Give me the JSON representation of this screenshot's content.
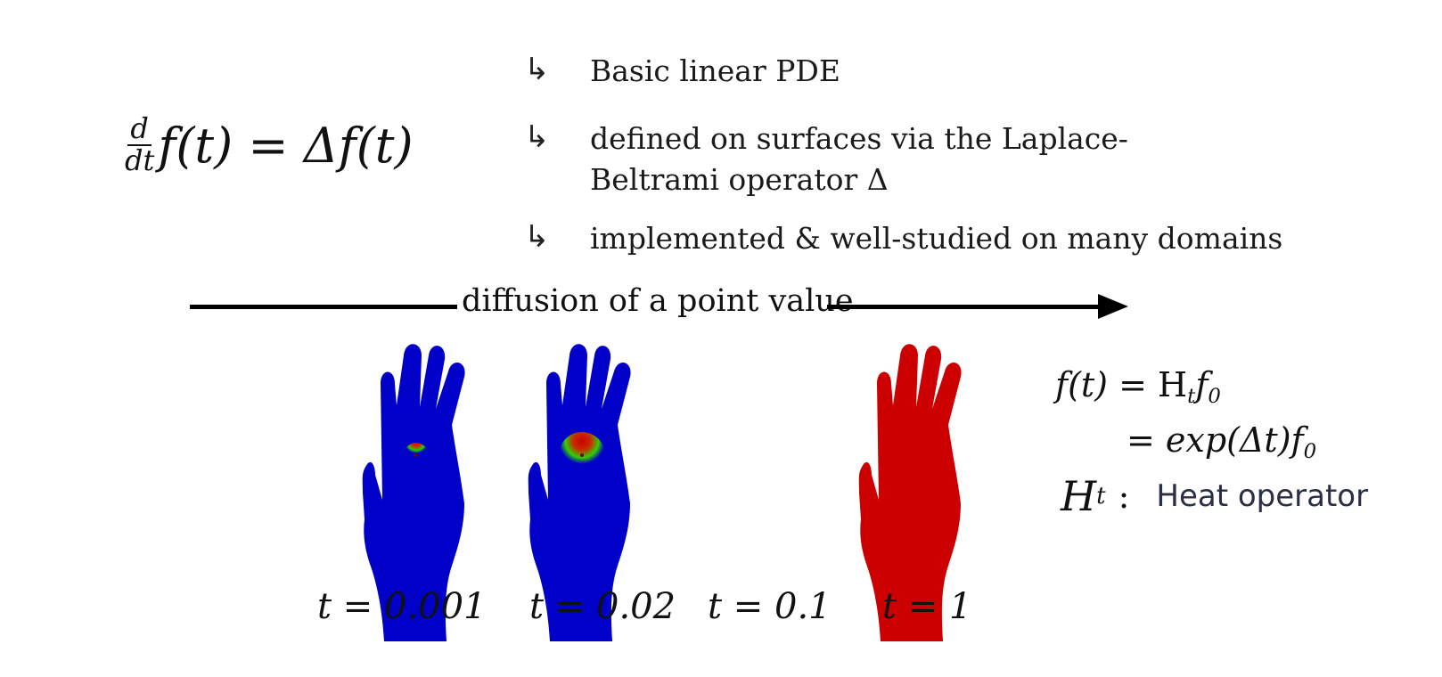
{
  "equation": {
    "frac_num": "d",
    "frac_den": "dt",
    "rhs": "f(t) = Δf(t)"
  },
  "bullets": [
    {
      "icon": "↳",
      "lines": [
        "Basic linear PDE"
      ]
    },
    {
      "icon": "↳",
      "lines": [
        "defined on surfaces via the Laplace-",
        "Beltrami operator Δ"
      ]
    },
    {
      "icon": "↳",
      "lines": [
        "implemented & well-studied on many domains"
      ]
    }
  ],
  "diffusion_label": "diffusion of a point value",
  "hands": [
    {
      "t_label": "t = 0.001",
      "scheme": "blue-small-spot"
    },
    {
      "t_label": "t = 0.02",
      "scheme": "blue-larger-spot"
    },
    {
      "t_label": "t = 0.1",
      "scheme": "green-red-spread"
    },
    {
      "t_label": "t = 1",
      "scheme": "all-red"
    }
  ],
  "formulas": {
    "line1_lhs": "f(t)",
    "line1_rhs": "= H",
    "line1_sub": "t",
    "line1_tail": "f",
    "line1_tail_sub": "0",
    "line2": "= exp(Δt)f",
    "line2_sub": "0",
    "heat_symbol": "H",
    "heat_sub": "t",
    "heat_colon": ":",
    "heat_text": "Heat operator"
  },
  "colors": {
    "blue": "#0000c8",
    "green": "#00e000",
    "red": "#cc0000"
  }
}
